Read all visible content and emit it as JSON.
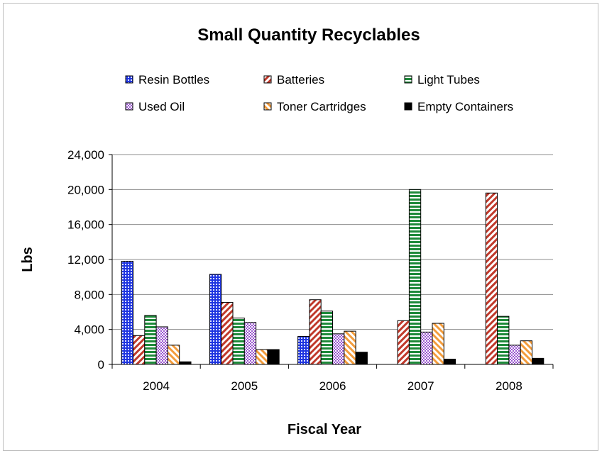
{
  "chart_data": {
    "type": "bar",
    "title": "Small Quantity Recyclables",
    "xlabel": "Fiscal Year",
    "ylabel": "Lbs",
    "categories": [
      "2004",
      "2005",
      "2006",
      "2007",
      "2008"
    ],
    "ylim": [
      0,
      24000
    ],
    "yticks": [
      0,
      4000,
      8000,
      12000,
      16000,
      20000,
      24000
    ],
    "ytick_labels": [
      "0",
      "4,000",
      "8,000",
      "12,000",
      "16,000",
      "20,000",
      "24,000"
    ],
    "grid": true,
    "legend_position": "top",
    "series": [
      {
        "name": "Resin Bottles",
        "values": [
          11800,
          10300,
          3200,
          0,
          0
        ],
        "color": "#1f35e0",
        "pattern": "dots"
      },
      {
        "name": "Batteries",
        "values": [
          3300,
          7100,
          7400,
          5000,
          19600
        ],
        "color": "#c0392b",
        "pattern": "diagonal"
      },
      {
        "name": "Light Tubes",
        "values": [
          5600,
          5300,
          6100,
          20000,
          5500
        ],
        "color": "#1e8a3a",
        "pattern": "horizontal"
      },
      {
        "name": "Used Oil",
        "values": [
          4300,
          4800,
          3500,
          3700,
          2200
        ],
        "color": "#9b59d0",
        "pattern": "checker"
      },
      {
        "name": "Toner Cartridges",
        "values": [
          2200,
          1700,
          3800,
          4700,
          2700
        ],
        "color": "#f39c3c",
        "pattern": "diagonal-orange"
      },
      {
        "name": "Empty Containers",
        "values": [
          300,
          1700,
          1400,
          600,
          700
        ],
        "color": "#000000",
        "pattern": "solid"
      }
    ]
  }
}
